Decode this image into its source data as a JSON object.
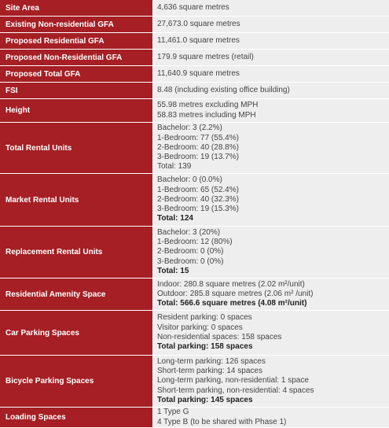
{
  "table": {
    "rows": [
      {
        "label": "Site Area",
        "lines": [
          "4,636 square metres"
        ]
      },
      {
        "label": "Existing Non-residential GFA",
        "lines": [
          "27,673.0 square metres"
        ]
      },
      {
        "label": "Proposed Residential GFA",
        "lines": [
          "11,461.0 square metres"
        ]
      },
      {
        "label": "Proposed Non-Residential GFA",
        "lines": [
          "179.9 square metres (retail)"
        ]
      },
      {
        "label": "Proposed Total GFA",
        "lines": [
          "11,640.9 square metres"
        ]
      },
      {
        "label": "FSI",
        "lines": [
          "8.48 (including existing office building)"
        ]
      },
      {
        "label": "Height",
        "lines": [
          "55.98 metres excluding MPH",
          "58.83 metres including MPH"
        ]
      },
      {
        "label": "Total Rental Units",
        "lines": [
          "Bachelor: 3 (2.2%)",
          "1-Bedroom: 77 (55.4%)",
          "2-Bedroom: 40 (28.8%)",
          "3-Bedroom: 19 (13.7%)",
          "Total: 139"
        ]
      },
      {
        "label": "Market Rental Units",
        "lines": [
          "Bachelor: 0 (0.0%)",
          "1-Bedroom: 65 (52.4%)",
          "2-Bedroom: 40 (32.3%)",
          "3-Bedroom: 19 (15.3%)"
        ],
        "total": "Total: 124"
      },
      {
        "label": "Replacement Rental Units",
        "lines": [
          "Bachelor: 3 (20%)",
          "1-Bedroom: 12 (80%)",
          "2-Bedroom: 0 (0%)",
          "3-Bedroom: 0 (0%)"
        ],
        "total": "Total: 15"
      },
      {
        "label": "Residential Amenity Space",
        "lines": [
          "Indoor: 280.8 square metres (2.02 m²/unit)",
          "Outdoor: 285.8 square metres (2.06 m² /unit)"
        ],
        "total": "Total: 566.6 square metres (4.08 m²/unit)"
      },
      {
        "label": "Car Parking Spaces",
        "lines": [
          "Resident parking: 0 spaces",
          "Visitor parking: 0 spaces",
          "Non-residential spaces: 158 spaces"
        ],
        "total": "Total parking: 158 spaces"
      },
      {
        "label": "Bicycle Parking Spaces",
        "lines": [
          "Long-term parking: 126 spaces",
          "Short-term parking: 14 spaces",
          "Long-term parking, non-residential: 1 space",
          "Short-term parking, non-residential: 4 spaces"
        ],
        "total": "Total parking: 145 spaces"
      },
      {
        "label": "Loading Spaces",
        "lines": [
          "1 Type G",
          "4 Type B (to be shared with Phase 1)"
        ]
      }
    ]
  }
}
